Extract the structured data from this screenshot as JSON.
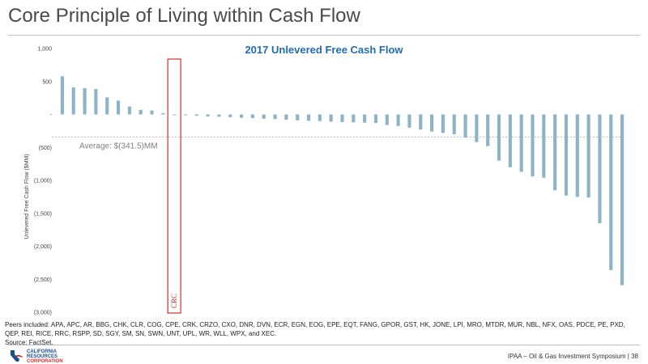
{
  "slide": {
    "title": "Core Principle of Living within Cash Flow",
    "footnote": "Peers included: APA, APC, AR, BBG, CHK, CLR, COG, CPE, CRK, CRZO, CXO, DNR, DVN, ECR, EGN, EOG, EPE, EQT, FANG, GPOR, GST, HK, JONE, LPI, MRO, MTDR, MUR, NBL, NFX, OAS, PDCE, PE, PXD, QEP, REI, RICE, RRC, RSPP, SD, SGY, SM, SN, SWN, UNT, UPL, WR, WLL, WPX, and XEC.",
    "source": "Source: FactSet.",
    "footer": "IPAA – Oil & Gas Investment Symposium",
    "page_number": "38",
    "logo": {
      "line1": "CALIFORNIA",
      "line2": "RESOURCES",
      "line3": "CORPORATION",
      "icon": "california-state-logo-icon",
      "color": "#1a4f8b",
      "accent": "#d32f2f"
    }
  },
  "chart_data": {
    "type": "bar",
    "title": "2017 Unlevered Free Cash Flow",
    "ylabel": "Unlevered Free Cash Flow ($MM)",
    "xlabel": "",
    "ylim": [
      -3000,
      1000
    ],
    "yticks": [
      1000,
      500,
      0,
      -500,
      -1000,
      -1500,
      -2000,
      -2500,
      -3000
    ],
    "ytick_labels": [
      "1,000",
      "500",
      "-",
      "(500)",
      "(1,000)",
      "(1,500)",
      "(2,000)",
      "(2,500)",
      "(3,000)"
    ],
    "bar_color": "#8db3c7",
    "values": [
      580,
      410,
      400,
      385,
      260,
      210,
      120,
      70,
      60,
      20,
      -5,
      -10,
      -20,
      -30,
      -35,
      -40,
      -50,
      -55,
      -65,
      -70,
      -80,
      -90,
      -95,
      -100,
      -110,
      -115,
      -120,
      -125,
      -130,
      -160,
      -175,
      -200,
      -230,
      -260,
      -280,
      -300,
      -350,
      -420,
      -480,
      -700,
      -800,
      -870,
      -940,
      -960,
      -1150,
      -1230,
      -1250,
      -1260,
      -1650,
      -2360,
      -2590
    ],
    "highlight": {
      "index": 10,
      "label": "CRC",
      "color": "#d32f2f"
    },
    "average": {
      "value": -341.5,
      "label": "Average: $(341.5)MM"
    },
    "grid": false
  }
}
